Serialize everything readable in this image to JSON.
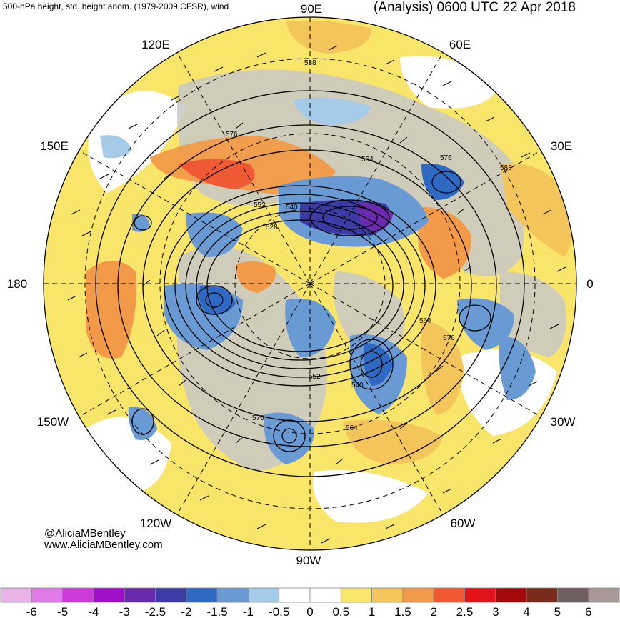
{
  "header": {
    "left_title": "500-hPa height, std. height anom. (1979-2009 CFSR), wind",
    "right_title": "(Analysis) 0600 UTC 22 Apr 2018"
  },
  "credits": {
    "handle": "@AliciaMBentley",
    "website": "www.AliciaMBentley.com"
  },
  "map": {
    "projection": "north polar stereographic",
    "meridian_labels": [
      {
        "name": "meridian-90e",
        "text": "90E"
      },
      {
        "name": "meridian-60e",
        "text": "60E"
      },
      {
        "name": "meridian-30e",
        "text": "30E"
      },
      {
        "name": "meridian-0",
        "text": "0"
      },
      {
        "name": "meridian-30w",
        "text": "30W"
      },
      {
        "name": "meridian-60w",
        "text": "60W"
      },
      {
        "name": "meridian-90w",
        "text": "90W"
      },
      {
        "name": "meridian-120w",
        "text": "120W"
      },
      {
        "name": "meridian-150w",
        "text": "150W"
      },
      {
        "name": "meridian-180",
        "text": "180"
      },
      {
        "name": "meridian-150e",
        "text": "150E"
      },
      {
        "name": "meridian-120e",
        "text": "120E"
      }
    ],
    "contour_labels": [
      "528",
      "540",
      "552",
      "564",
      "576",
      "588",
      "576",
      "564",
      "552",
      "540",
      "564",
      "576",
      "576",
      "588"
    ],
    "land_color": "#c8c8c8",
    "ocean_color": "#ffffff"
  },
  "colorbar": {
    "ticks": [
      "-6",
      "-5",
      "-4",
      "-3",
      "-2.5",
      "-2",
      "-1.5",
      "-1",
      "-0.5",
      "0",
      "0.5",
      "1",
      "1.5",
      "2",
      "2.5",
      "3",
      "4",
      "5",
      "6"
    ],
    "colors": [
      "#e8b4e8",
      "#e07ae6",
      "#cc3ad8",
      "#a010c8",
      "#6a2aae",
      "#3c3ca6",
      "#2e6ac4",
      "#6a9ad4",
      "#a6cbe8",
      "#ffffff",
      "#ffffff",
      "#f8e56a",
      "#f4c55a",
      "#f29a48",
      "#ef5a34",
      "#e2141a",
      "#a40a0a",
      "#7a2a1a",
      "#6e6060",
      "#a89898"
    ]
  }
}
